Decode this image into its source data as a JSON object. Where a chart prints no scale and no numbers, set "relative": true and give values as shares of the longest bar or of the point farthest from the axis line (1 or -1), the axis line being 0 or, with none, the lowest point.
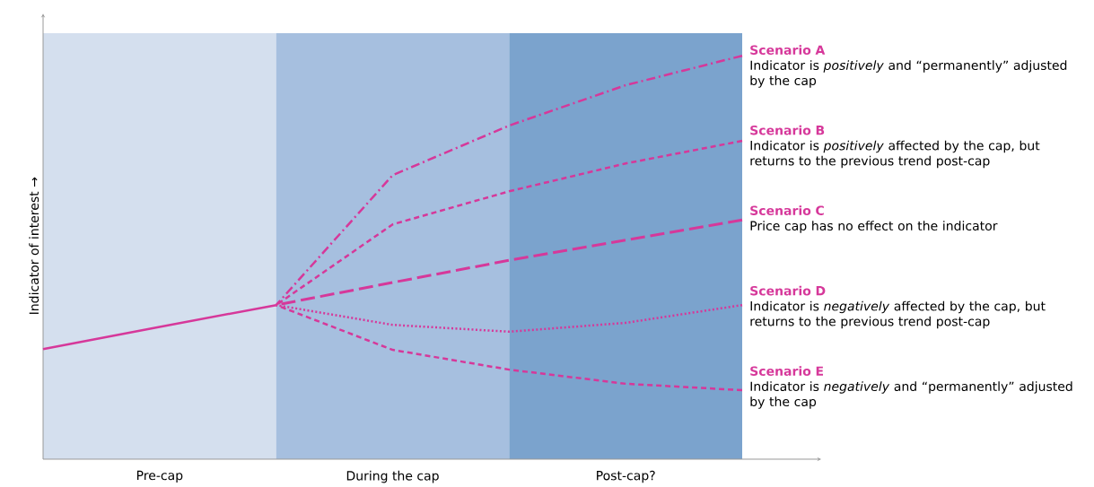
{
  "chart_data": {
    "type": "line",
    "relative": true,
    "ylabel": "Indicator of interest →",
    "categories": [
      null,
      "Pre-cap",
      null,
      "During the cap",
      null,
      "Post-cap?",
      null
    ],
    "series": [
      {
        "color": "#d6389a",
        "line_style": "solid",
        "values": [
          0.273,
          0.328,
          0.382,
          null,
          null,
          null,
          null
        ]
      },
      {
        "name": "Scenario A",
        "color": "#d6389a",
        "line_style": "dashdot",
        "values": [
          null,
          null,
          0.382,
          0.704,
          0.827,
          0.927,
          1
        ]
      },
      {
        "name": "Scenario B",
        "color": "#d6389a",
        "line_style": "dashed",
        "values": [
          null,
          null,
          0.382,
          0.582,
          0.664,
          0.733,
          0.789
        ]
      },
      {
        "name": "Scenario C",
        "color": "#d6389a",
        "line_style": "longdashed",
        "values": [
          null,
          null,
          0.382,
          0.438,
          0.493,
          0.543,
          0.593
        ]
      },
      {
        "name": "Scenario D",
        "color": "#d6389a",
        "line_style": "dotted",
        "values": [
          null,
          null,
          0.382,
          0.333,
          0.316,
          0.338,
          0.382
        ]
      },
      {
        "name": "Scenario E",
        "color": "#d6389a",
        "line_style": "dashed",
        "values": [
          null,
          null,
          0.382,
          0.271,
          0.222,
          0.187,
          0.171
        ]
      }
    ],
    "annotations": [
      "Indicator is *positively* and “permanently” adjusted by the cap",
      "Indicator is *positively* affected by the cap, but returns to the previous trend post-cap",
      "Price cap has no effect on the indicator",
      "Indicator is *negatively* affected by the cap, but returns to the previous trend post-cap",
      "Indicator is *negatively* and “permanently” adjusted by the cap"
    ]
  }
}
